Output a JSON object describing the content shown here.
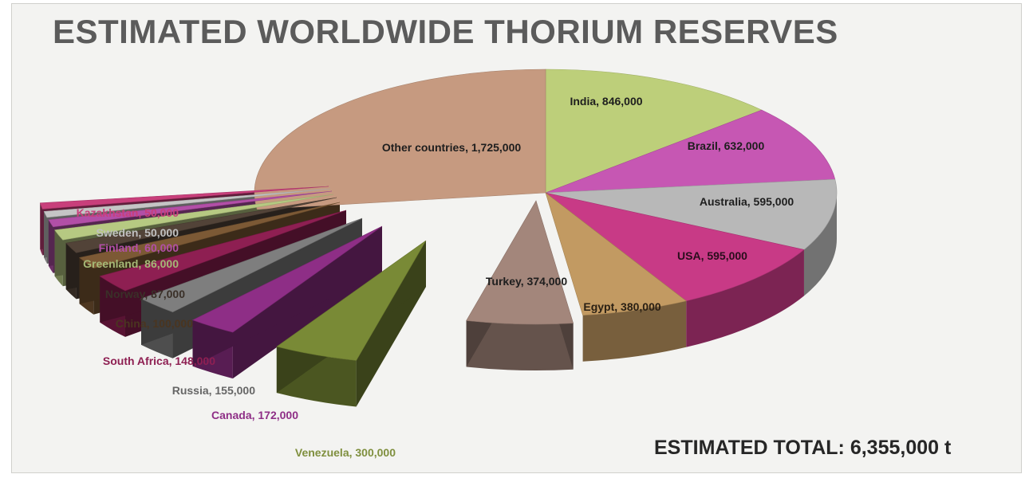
{
  "chart_data": {
    "type": "pie",
    "title": "ESTIMATED WORLDWIDE THORIUM RESERVES",
    "total_label": "ESTIMATED TOTAL: 6,355,000 t",
    "slices": [
      {
        "label": "India, 846,000",
        "value": 846000,
        "color": "#bdcf7a"
      },
      {
        "label": "Brazil, 632,000",
        "value": 632000,
        "color": "#c657b3"
      },
      {
        "label": "Australia, 595,000",
        "value": 595000,
        "color": "#b8b8b8"
      },
      {
        "label": "USA, 595,000",
        "value": 595000,
        "color": "#c83a86"
      },
      {
        "label": "Egypt, 380,000",
        "value": 380000,
        "color": "#c29a62"
      },
      {
        "label": "Turkey, 374,000",
        "value": 374000,
        "color": "#a3867b"
      },
      {
        "label": "Venezuela, 300,000",
        "value": 300000,
        "color": "#798a36"
      },
      {
        "label": "Canada, 172,000",
        "value": 172000,
        "color": "#8e2e86"
      },
      {
        "label": "Russia, 155,000",
        "value": 155000,
        "color": "#7e7e7e"
      },
      {
        "label": "South Africa, 148,000",
        "value": 148000,
        "color": "#8e1f52"
      },
      {
        "label": "China, 100,000",
        "value": 100000,
        "color": "#7c5935"
      },
      {
        "label": "Norway, 87,000",
        "value": 87000,
        "color": "#524338"
      },
      {
        "label": "Greenland, 86,000",
        "value": 86000,
        "color": "#b6c982"
      },
      {
        "label": "Finland, 60,000",
        "value": 60000,
        "color": "#b24fa7"
      },
      {
        "label": "Sweden, 50,000",
        "value": 50000,
        "color": "#c5c5c5"
      },
      {
        "label": "Kazakhstan, 50,000",
        "value": 50000,
        "color": "#c83f7b"
      },
      {
        "label": "Other countries, 1,725,000",
        "value": 1725000,
        "color": "#c69a80"
      }
    ]
  }
}
